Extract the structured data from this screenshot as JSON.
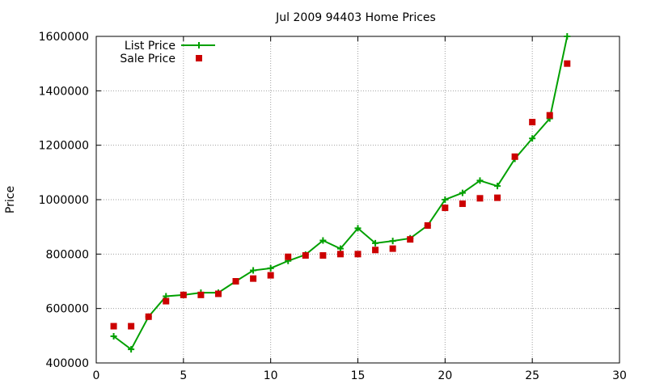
{
  "chart_data": {
    "type": "line",
    "title": "Jul 2009 94403 Home Prices",
    "xlabel": "",
    "ylabel": "Price",
    "xlim": [
      0,
      30
    ],
    "ylim": [
      400000,
      1600000
    ],
    "x_ticks": [
      "0",
      "5",
      "10",
      "15",
      "20",
      "25",
      "30"
    ],
    "y_ticks": [
      "400000",
      "600000",
      "800000",
      "1000000",
      "1200000",
      "1400000",
      "1600000"
    ],
    "grid": true,
    "legend_position": "top-left",
    "series": [
      {
        "name": "List Price",
        "style": "line-with-plus-markers",
        "color": "#00a000",
        "points": [
          [
            1,
            498000
          ],
          [
            2,
            450000
          ],
          [
            3,
            570000
          ],
          [
            4,
            645000
          ],
          [
            5,
            650000
          ],
          [
            6,
            658000
          ],
          [
            7,
            658000
          ],
          [
            8,
            700000
          ],
          [
            9,
            740000
          ],
          [
            10,
            748000
          ],
          [
            11,
            775000
          ],
          [
            12,
            798000
          ],
          [
            13,
            850000
          ],
          [
            14,
            820000
          ],
          [
            15,
            895000
          ],
          [
            16,
            840000
          ],
          [
            17,
            848000
          ],
          [
            18,
            858000
          ],
          [
            19,
            905000
          ],
          [
            20,
            1000000
          ],
          [
            21,
            1025000
          ],
          [
            22,
            1070000
          ],
          [
            23,
            1050000
          ],
          [
            24,
            1150000
          ],
          [
            25,
            1225000
          ],
          [
            26,
            1298000
          ],
          [
            27,
            1600000
          ]
        ]
      },
      {
        "name": "Sale Price",
        "style": "square-markers",
        "color": "#cc0000",
        "points": [
          [
            1,
            535000
          ],
          [
            2,
            535000
          ],
          [
            3,
            570000
          ],
          [
            4,
            627000
          ],
          [
            5,
            650000
          ],
          [
            6,
            650000
          ],
          [
            7,
            654000
          ],
          [
            8,
            700000
          ],
          [
            9,
            710000
          ],
          [
            10,
            722000
          ],
          [
            11,
            790000
          ],
          [
            12,
            795000
          ],
          [
            13,
            795000
          ],
          [
            14,
            800000
          ],
          [
            15,
            800000
          ],
          [
            16,
            815000
          ],
          [
            17,
            820000
          ],
          [
            18,
            854000
          ],
          [
            19,
            905000
          ],
          [
            20,
            970000
          ],
          [
            21,
            985000
          ],
          [
            22,
            1005000
          ],
          [
            23,
            1007000
          ],
          [
            24,
            1158000
          ],
          [
            25,
            1285000
          ],
          [
            26,
            1310000
          ],
          [
            27,
            1500000
          ]
        ]
      }
    ]
  }
}
